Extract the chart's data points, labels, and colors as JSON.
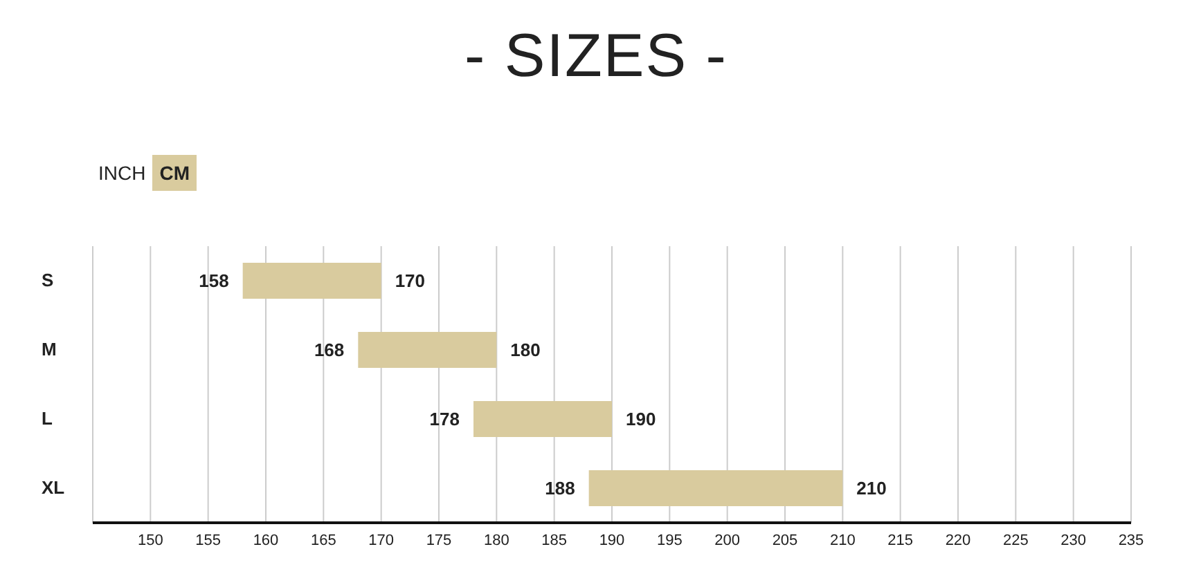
{
  "chart_data": {
    "type": "bar",
    "orientation": "horizontal",
    "title": "- SIZES -",
    "categories": [
      "S",
      "M",
      "L",
      "XL"
    ],
    "base": [
      158,
      168,
      178,
      188
    ],
    "values": [
      12,
      12,
      12,
      22
    ],
    "color": "#d9cb9e",
    "xlim": [
      145,
      235
    ],
    "xticks": [
      150,
      155,
      160,
      165,
      170,
      175,
      180,
      185,
      190,
      195,
      200,
      205,
      210,
      215,
      220,
      225,
      230,
      235
    ],
    "grid": "x",
    "legend": false,
    "annotations": [
      "INCH",
      "CM",
      {
        "text": "158",
        "x": 158,
        "y": "S"
      },
      {
        "text": "170",
        "x": 170,
        "y": "S"
      },
      {
        "text": "168",
        "x": 168,
        "y": "M"
      },
      {
        "text": "180",
        "x": 180,
        "y": "M"
      },
      {
        "text": "178",
        "x": 178,
        "y": "L"
      },
      {
        "text": "190",
        "x": 190,
        "y": "L"
      },
      {
        "text": "188",
        "x": 188,
        "y": "XL"
      },
      {
        "text": "210",
        "x": 210,
        "y": "XL"
      }
    ]
  }
}
